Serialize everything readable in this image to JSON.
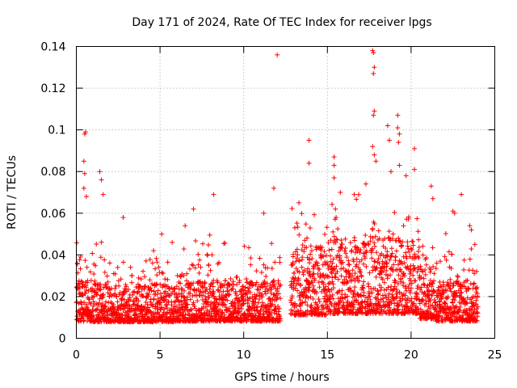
{
  "chart_data": {
    "type": "scatter",
    "title": "Day 171 of 2024, Rate Of TEC Index for receiver lpgs",
    "xlabel": "GPS time / hours",
    "ylabel": "ROTI / TECUs",
    "xlim": [
      0,
      25
    ],
    "ylim": [
      0,
      0.14
    ],
    "xticks": [
      0,
      5,
      10,
      15,
      20,
      25
    ],
    "yticks": [
      0,
      0.02,
      0.04,
      0.06,
      0.08,
      0.1,
      0.12,
      0.14
    ],
    "xtick_labels": [
      "0",
      "5",
      "10",
      "15",
      "20",
      "25"
    ],
    "ytick_labels": [
      "0",
      "0.02",
      "0.04",
      "0.06",
      "0.08",
      "0.1",
      "0.12",
      "0.14"
    ],
    "grid": true,
    "marker": "+",
    "color": "#ff0000",
    "x_data_extent": [
      0,
      24
    ],
    "gap_hours": [
      12.2,
      12.8
    ],
    "outliers": [
      [
        0.25,
        0.039
      ],
      [
        0.5,
        0.098
      ],
      [
        0.55,
        0.099
      ],
      [
        0.45,
        0.085
      ],
      [
        0.5,
        0.079
      ],
      [
        0.45,
        0.072
      ],
      [
        0.6,
        0.068
      ],
      [
        1.4,
        0.08
      ],
      [
        1.5,
        0.076
      ],
      [
        1.6,
        0.069
      ],
      [
        2.8,
        0.058
      ],
      [
        5.1,
        0.05
      ],
      [
        6.5,
        0.054
      ],
      [
        7.0,
        0.062
      ],
      [
        8.2,
        0.069
      ],
      [
        11.2,
        0.06
      ],
      [
        11.8,
        0.072
      ],
      [
        12.0,
        0.136
      ],
      [
        13.3,
        0.065
      ],
      [
        13.9,
        0.095
      ],
      [
        13.9,
        0.084
      ],
      [
        15.4,
        0.087
      ],
      [
        15.4,
        0.083
      ],
      [
        15.4,
        0.077
      ],
      [
        16.6,
        0.069
      ],
      [
        17.3,
        0.074
      ],
      [
        17.7,
        0.138
      ],
      [
        17.75,
        0.137
      ],
      [
        17.8,
        0.13
      ],
      [
        17.75,
        0.127
      ],
      [
        17.8,
        0.109
      ],
      [
        17.75,
        0.107
      ],
      [
        17.7,
        0.092
      ],
      [
        17.8,
        0.088
      ],
      [
        17.9,
        0.085
      ],
      [
        18.6,
        0.102
      ],
      [
        18.7,
        0.095
      ],
      [
        19.2,
        0.107
      ],
      [
        19.2,
        0.101
      ],
      [
        19.3,
        0.098
      ],
      [
        19.25,
        0.094
      ],
      [
        19.3,
        0.083
      ],
      [
        18.8,
        0.08
      ],
      [
        19.7,
        0.078
      ],
      [
        20.2,
        0.091
      ],
      [
        20.2,
        0.081
      ],
      [
        21.2,
        0.073
      ],
      [
        21.3,
        0.067
      ],
      [
        22.5,
        0.061
      ],
      [
        22.6,
        0.06
      ],
      [
        23.0,
        0.069
      ],
      [
        23.5,
        0.054
      ],
      [
        23.6,
        0.052
      ]
    ]
  }
}
